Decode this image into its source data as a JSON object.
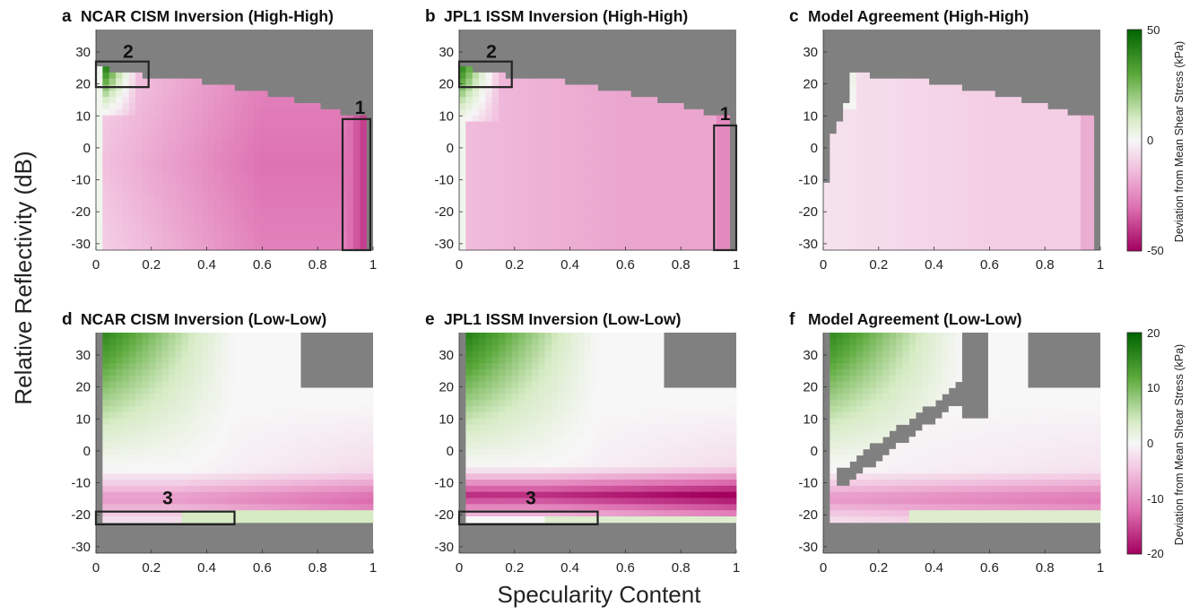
{
  "figure": {
    "ylabel": "Relative Reflectivity (dB)",
    "xlabel": "Specularity Content",
    "colorbars": [
      {
        "row": 0,
        "label": "Deviation from Mean Shear Stress (kPa)",
        "ticks": [
          "50",
          "0",
          "-50"
        ],
        "range": [
          -50,
          50
        ]
      },
      {
        "row": 1,
        "label": "Deviation from Mean Shear Stress (kPa)",
        "ticks": [
          "20",
          "10",
          "0",
          "-10",
          "-20"
        ],
        "range": [
          -20,
          20
        ]
      }
    ],
    "colors": {
      "positive": "#006400",
      "zero": "#f7f7f7",
      "negative": "#b0006a",
      "nodata": "#808080"
    }
  },
  "chart_data": [
    {
      "type": "heatmap",
      "letter": "a",
      "title": "NCAR CISM Inversion (High-High)",
      "row": 0,
      "xticks": [
        "0",
        "0.2",
        "0.4",
        "0.6",
        "0.8",
        "1"
      ],
      "yticks": [
        "30",
        "20",
        "10",
        "0",
        "-10",
        "-20",
        "-30"
      ],
      "xlim": [
        0,
        1
      ],
      "ylim": [
        -32,
        37
      ],
      "colorbar_range": [
        -50,
        50
      ],
      "boxes": [
        {
          "label": "1",
          "x": [
            0.89,
            0.99
          ],
          "y": [
            -32,
            9
          ]
        },
        {
          "label": "2",
          "x": [
            0,
            0.19
          ],
          "y": [
            19,
            27
          ]
        }
      ]
    },
    {
      "type": "heatmap",
      "letter": "b",
      "title": "JPL1 ISSM Inversion (High-High)",
      "row": 0,
      "xticks": [
        "0",
        "0.2",
        "0.4",
        "0.6",
        "0.8",
        "1"
      ],
      "yticks": [
        "30",
        "20",
        "10",
        "0",
        "-10",
        "-20",
        "-30"
      ],
      "xlim": [
        0,
        1
      ],
      "ylim": [
        -32,
        37
      ],
      "colorbar_range": [
        -50,
        50
      ],
      "boxes": [
        {
          "label": "1",
          "x": [
            0.92,
            1.0
          ],
          "y": [
            -32,
            7
          ]
        },
        {
          "label": "2",
          "x": [
            0,
            0.19
          ],
          "y": [
            19,
            27
          ]
        }
      ]
    },
    {
      "type": "heatmap",
      "letter": "c",
      "title": "Model Agreement (High-High)",
      "row": 0,
      "xticks": [
        "0",
        "0.2",
        "0.4",
        "0.6",
        "0.8",
        "1"
      ],
      "yticks": [
        "30",
        "20",
        "10",
        "0",
        "-10",
        "-20",
        "-30"
      ],
      "xlim": [
        0,
        1
      ],
      "ylim": [
        -32,
        37
      ],
      "colorbar_range": [
        -50,
        50
      ],
      "boxes": []
    },
    {
      "type": "heatmap",
      "letter": "d",
      "title": "NCAR CISM Inversion (Low-Low)",
      "row": 1,
      "xticks": [
        "0",
        "0.2",
        "0.4",
        "0.6",
        "0.8",
        "1"
      ],
      "yticks": [
        "30",
        "20",
        "10",
        "0",
        "-10",
        "-20",
        "-30"
      ],
      "xlim": [
        0,
        1
      ],
      "ylim": [
        -32,
        37
      ],
      "colorbar_range": [
        -20,
        20
      ],
      "boxes": [
        {
          "label": "3",
          "x": [
            0,
            0.5
          ],
          "y": [
            -23,
            -19
          ]
        }
      ]
    },
    {
      "type": "heatmap",
      "letter": "e",
      "title": "JPL1 ISSM Inversion (Low-Low)",
      "row": 1,
      "xticks": [
        "0",
        "0.2",
        "0.4",
        "0.6",
        "0.8",
        "1"
      ],
      "yticks": [
        "30",
        "20",
        "10",
        "0",
        "-10",
        "-20",
        "-30"
      ],
      "xlim": [
        0,
        1
      ],
      "ylim": [
        -32,
        37
      ],
      "colorbar_range": [
        -20,
        20
      ],
      "boxes": [
        {
          "label": "3",
          "x": [
            0,
            0.5
          ],
          "y": [
            -23,
            -19
          ]
        }
      ]
    },
    {
      "type": "heatmap",
      "letter": "f",
      "title": "Model Agreement (Low-Low)",
      "row": 1,
      "xticks": [
        "0",
        "0.2",
        "0.4",
        "0.6",
        "0.8",
        "1"
      ],
      "yticks": [
        "30",
        "20",
        "10",
        "0",
        "-10",
        "-20",
        "-30"
      ],
      "xlim": [
        0,
        1
      ],
      "ylim": [
        -32,
        37
      ],
      "colorbar_range": [
        -20,
        20
      ],
      "boxes": []
    }
  ]
}
